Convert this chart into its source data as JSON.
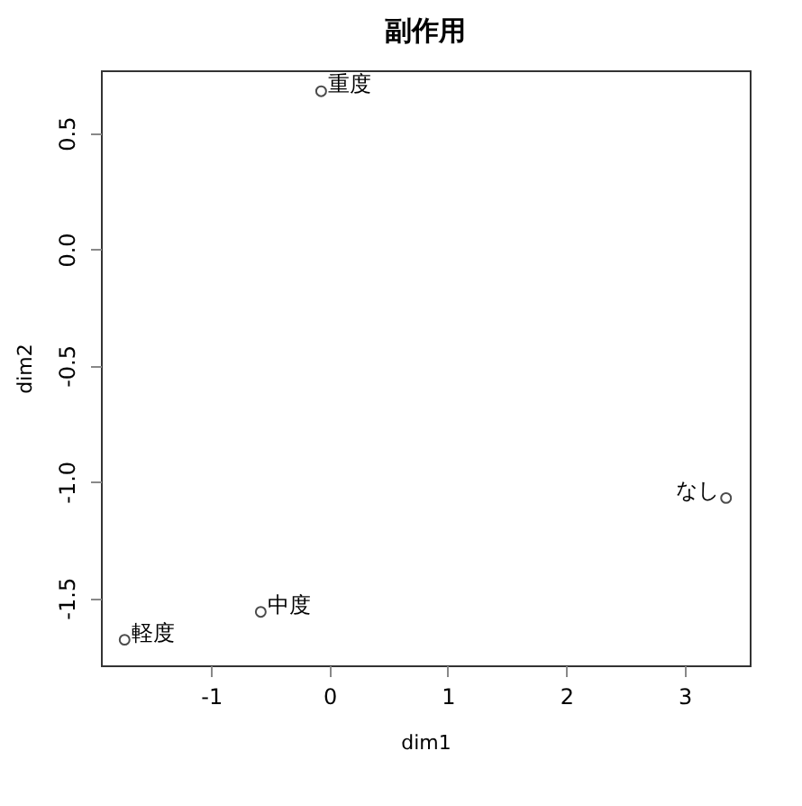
{
  "chart_data": {
    "type": "scatter",
    "title": "副作用",
    "xlabel": "dim1",
    "ylabel": "dim2",
    "series": [
      {
        "name": "重度",
        "color": "#000000",
        "x": [
          -0.07
        ],
        "values": [
          0.68
        ]
      },
      {
        "name": "なし",
        "color": "#000000",
        "x": [
          3.35
        ],
        "values": [
          -1.07
        ]
      },
      {
        "name": "中度",
        "color": "#000000",
        "x": [
          -0.58
        ],
        "values": [
          -1.56
        ]
      },
      {
        "name": "軽度",
        "color": "#000000",
        "x": [
          -1.73
        ],
        "values": [
          -1.68
        ]
      }
    ],
    "marker": "circle",
    "legend": false,
    "grid": false,
    "xlim": [
      -1.93,
      3.55
    ],
    "ylim": [
      -1.79,
      0.77
    ],
    "xticks": [
      -1,
      0,
      1,
      2,
      3
    ],
    "yticks": [
      {
        "value": -1.5,
        "label": "-1.5"
      },
      {
        "value": -1,
        "label": "-1.0"
      },
      {
        "value": -0.5,
        "label": "-0.5"
      },
      {
        "value": 0,
        "label": "0.0"
      },
      {
        "value": 0.5,
        "label": "0.5"
      }
    ]
  }
}
